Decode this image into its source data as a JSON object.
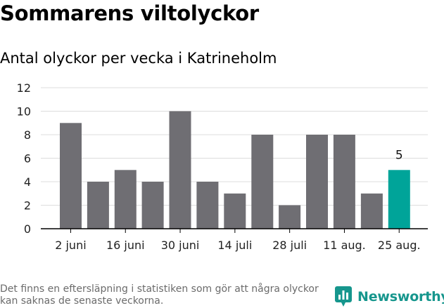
{
  "title": "Sommarens viltolyckor",
  "subtitle": "Antal olyckor per vecka i Katrineholm",
  "footnote": "Det finns en eftersläpning i statistiken som gör att några olyckor kan saknas de senaste veckorna.",
  "brand": {
    "name": "Newsworthy",
    "color": "#16968d"
  },
  "chart_data": {
    "type": "bar",
    "title": "Sommarens viltolyckor",
    "subtitle": "Antal olyckor per vecka i Katrineholm",
    "values": [
      9,
      4,
      5,
      4,
      10,
      4,
      3,
      8,
      2,
      8,
      8,
      3,
      5
    ],
    "x_tick_labels": [
      "2 juni",
      "16 juni",
      "30 juni",
      "14 juli",
      "28 juli",
      "11 aug.",
      "25 aug."
    ],
    "x_tick_every": 2,
    "ylim": [
      0,
      12
    ],
    "yticks": [
      0,
      2,
      4,
      6,
      8,
      10,
      12
    ],
    "grid": true,
    "colors": {
      "bar": "#6f6e73",
      "highlight": "#00a499",
      "grid": "#dddddd",
      "axis": "#000000"
    },
    "highlight_last": true,
    "data_labels": [
      {
        "index": 12,
        "text": "5"
      }
    ]
  }
}
